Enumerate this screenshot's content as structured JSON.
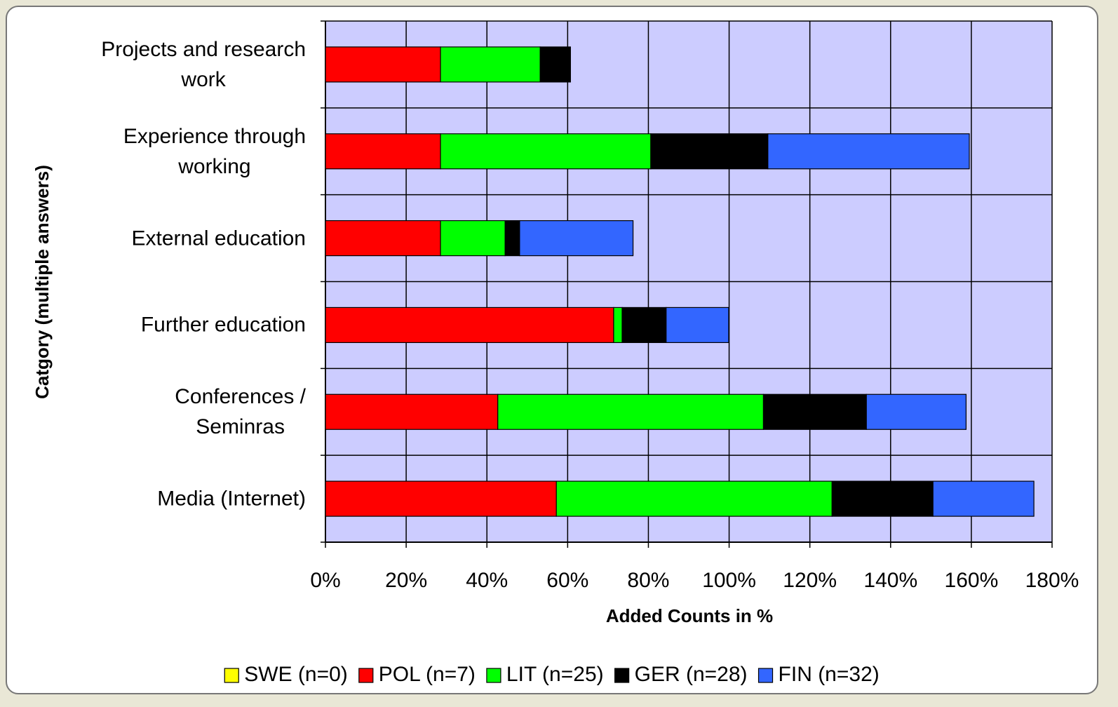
{
  "chart_data": {
    "type": "stacked_barh",
    "categories": [
      "Projects and research\nwork",
      "Experience through\nworking",
      "External education",
      "Further education",
      "Conferences /\nSeminras",
      "Media (Internet)"
    ],
    "series": [
      {
        "name": "SWE (n=0)",
        "color": "#ffff00",
        "values": [
          0,
          0,
          0,
          0,
          0,
          0
        ]
      },
      {
        "name": "POL (n=7)",
        "color": "#ff0000",
        "values": [
          28.5,
          28.5,
          28.5,
          71.4,
          42.7,
          57.2
        ]
      },
      {
        "name": "LIT (n=25)",
        "color": "#00ff00",
        "values": [
          24.7,
          52.1,
          16.0,
          2.1,
          65.8,
          68.3
        ]
      },
      {
        "name": "GER (n=28)",
        "color": "#000000",
        "values": [
          7.5,
          29.0,
          3.6,
          10.9,
          25.5,
          25.0
        ]
      },
      {
        "name": "FIN (n=32)",
        "color": "#3366ff",
        "values": [
          0,
          49.9,
          28.1,
          15.5,
          24.7,
          25.0
        ]
      }
    ],
    "xlabel": "Added Counts in %",
    "ylabel": "Catgory (multiple answers)",
    "xlim": [
      0,
      180
    ],
    "xticks": [
      {
        "value": 0,
        "label": "0%"
      },
      {
        "value": 20,
        "label": "20%"
      },
      {
        "value": 40,
        "label": "40%"
      },
      {
        "value": 60,
        "label": "60%"
      },
      {
        "value": 80,
        "label": "80%"
      },
      {
        "value": 100,
        "label": "100%"
      },
      {
        "value": 120,
        "label": "120%"
      },
      {
        "value": 140,
        "label": "140%"
      },
      {
        "value": 160,
        "label": "160%"
      },
      {
        "value": 180,
        "label": "180%"
      }
    ],
    "grid": true,
    "legend": "bottom"
  }
}
